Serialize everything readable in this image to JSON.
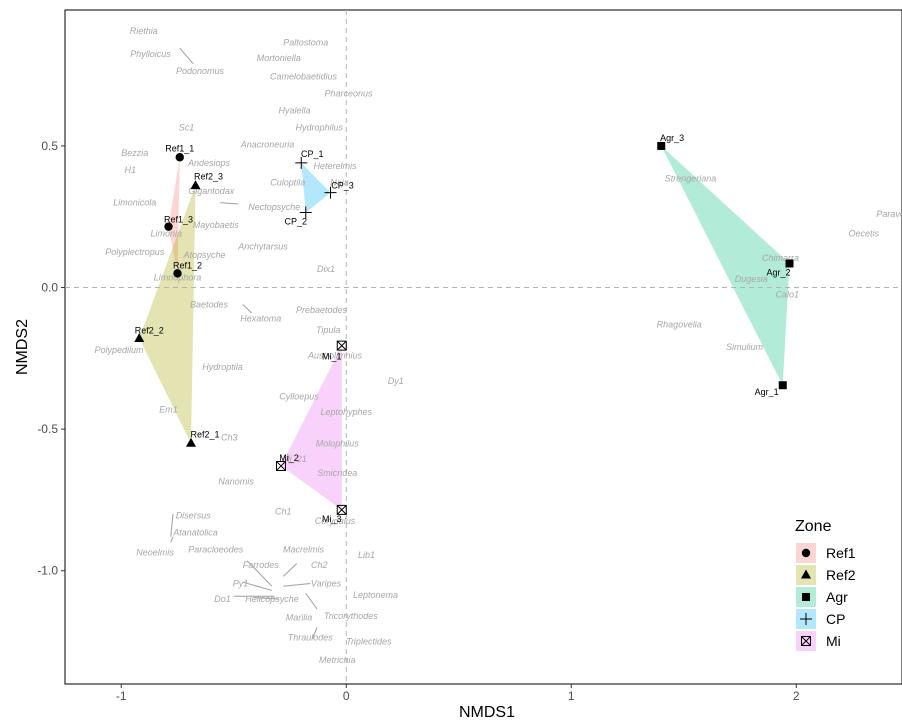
{
  "chart_data": {
    "type": "scatter",
    "xlabel": "NMDS1",
    "ylabel": "NMDS2",
    "xlim": [
      -1.25,
      2.47
    ],
    "ylim": [
      -1.4,
      0.98
    ],
    "x_ticks": [
      -1,
      0,
      1,
      2
    ],
    "x_tick_labels": [
      "-1",
      "0",
      "1",
      "2"
    ],
    "y_ticks": [
      0.5,
      0.0,
      -0.5,
      -1.0
    ],
    "y_tick_labels": [
      "0.5",
      "0.0",
      "-0.5",
      "-1.0"
    ],
    "reference_lines": {
      "x": 0,
      "y": 0
    },
    "grid": false,
    "legend": {
      "title": "Zone",
      "placement": "bottom-right",
      "entries": [
        {
          "label": "Ref1",
          "marker": "circle",
          "fill": "#f8766d"
        },
        {
          "label": "Ref2",
          "marker": "triangle",
          "fill": "#a3a500"
        },
        {
          "label": "Agr",
          "marker": "square",
          "fill": "#00bf7d"
        },
        {
          "label": "CP",
          "marker": "plus",
          "fill": "#00b0f6"
        },
        {
          "label": "Mi",
          "marker": "boxx",
          "fill": "#e76bf3"
        }
      ]
    },
    "groups": [
      {
        "name": "Ref1",
        "hull_color": "#f8766d",
        "marker": "circle",
        "points": [
          {
            "label": "Ref1_1",
            "x": -0.74,
            "y": 0.46
          },
          {
            "label": "Ref1_3",
            "x": -0.79,
            "y": 0.215
          },
          {
            "label": "Ref1_2",
            "x": -0.75,
            "y": 0.05
          }
        ]
      },
      {
        "name": "Ref2",
        "hull_color": "#a3a500",
        "marker": "triangle",
        "points": [
          {
            "label": "Ref2_3",
            "x": -0.67,
            "y": 0.36
          },
          {
            "label": "Ref2_2",
            "x": -0.92,
            "y": -0.18
          },
          {
            "label": "Ref2_1",
            "x": -0.69,
            "y": -0.55
          }
        ]
      },
      {
        "name": "Agr",
        "hull_color": "#00bf7d",
        "marker": "square",
        "points": [
          {
            "label": "Agr_3",
            "x": 1.4,
            "y": 0.5
          },
          {
            "label": "Agr_2",
            "x": 1.97,
            "y": 0.085
          },
          {
            "label": "Agr_1",
            "x": 1.94,
            "y": -0.345
          }
        ]
      },
      {
        "name": "CP",
        "hull_color": "#00b0f6",
        "marker": "plus",
        "points": [
          {
            "label": "CP_1",
            "x": -0.2,
            "y": 0.44
          },
          {
            "label": "CP_3",
            "x": -0.07,
            "y": 0.335
          },
          {
            "label": "CP_2",
            "x": -0.18,
            "y": 0.265
          }
        ]
      },
      {
        "name": "Mi",
        "hull_color": "#e76bf3",
        "marker": "boxx",
        "points": [
          {
            "label": "Mi_1",
            "x": -0.02,
            "y": -0.205
          },
          {
            "label": "Mi_2",
            "x": -0.29,
            "y": -0.63
          },
          {
            "label": "Mi_3",
            "x": -0.02,
            "y": -0.785
          }
        ]
      }
    ],
    "taxa": [
      {
        "name": "Riethia",
        "x": -0.9,
        "y": 0.905
      },
      {
        "name": "Phylloicus",
        "x": -0.87,
        "y": 0.825
      },
      {
        "name": "Podonomus",
        "x": -0.65,
        "y": 0.765
      },
      {
        "name": "Paltostoma",
        "x": -0.18,
        "y": 0.865
      },
      {
        "name": "Mortoniella",
        "x": -0.3,
        "y": 0.81
      },
      {
        "name": "Camelobaetidius",
        "x": -0.19,
        "y": 0.745
      },
      {
        "name": "Pharceonus",
        "x": 0.01,
        "y": 0.685
      },
      {
        "name": "Hyalella",
        "x": -0.23,
        "y": 0.625
      },
      {
        "name": "Hydrophilus",
        "x": -0.12,
        "y": 0.565
      },
      {
        "name": "Sc1",
        "x": -0.71,
        "y": 0.565
      },
      {
        "name": "Anacroneuria",
        "x": -0.35,
        "y": 0.505
      },
      {
        "name": "Bezzia",
        "x": -0.94,
        "y": 0.475
      },
      {
        "name": "Andesiops",
        "x": -0.61,
        "y": 0.44
      },
      {
        "name": "H1",
        "x": -0.96,
        "y": 0.415
      },
      {
        "name": "Heterelmis",
        "x": -0.05,
        "y": 0.43
      },
      {
        "name": "Culoptila",
        "x": -0.26,
        "y": 0.37
      },
      {
        "name": "Naja",
        "x": -0.03,
        "y": 0.37
      },
      {
        "name": "Gigantodax",
        "x": -0.6,
        "y": 0.34
      },
      {
        "name": "Limonicola",
        "x": -0.94,
        "y": 0.3
      },
      {
        "name": "Nectopsyche",
        "x": -0.32,
        "y": 0.285
      },
      {
        "name": "Mayobaetis",
        "x": -0.58,
        "y": 0.22
      },
      {
        "name": "Limonia",
        "x": -0.8,
        "y": 0.19
      },
      {
        "name": "Anchytarsus",
        "x": -0.37,
        "y": 0.145
      },
      {
        "name": "Polyplectropus",
        "x": -0.94,
        "y": 0.125
      },
      {
        "name": "Atopsyche",
        "x": -0.63,
        "y": 0.115
      },
      {
        "name": "Dix1",
        "x": -0.09,
        "y": 0.065
      },
      {
        "name": "Limnophora",
        "x": -0.75,
        "y": 0.035
      },
      {
        "name": "Baetodes",
        "x": -0.61,
        "y": -0.06
      },
      {
        "name": "Prebaetodes",
        "x": -0.11,
        "y": -0.08
      },
      {
        "name": "Hexatoma",
        "x": -0.38,
        "y": -0.11
      },
      {
        "name": "Tipula",
        "x": -0.08,
        "y": -0.15
      },
      {
        "name": "Polypedilum",
        "x": -1.01,
        "y": -0.22
      },
      {
        "name": "Austrolimnius",
        "x": -0.05,
        "y": -0.24
      },
      {
        "name": "Hydroptila",
        "x": -0.55,
        "y": -0.28
      },
      {
        "name": "Dy1",
        "x": 0.22,
        "y": -0.33
      },
      {
        "name": "Cylloepus",
        "x": -0.21,
        "y": -0.385
      },
      {
        "name": "Em1",
        "x": -0.79,
        "y": -0.43
      },
      {
        "name": "Leptohyphes",
        "x": 0.0,
        "y": -0.44
      },
      {
        "name": "Ch3",
        "x": -0.52,
        "y": -0.53
      },
      {
        "name": "Molophilus",
        "x": -0.04,
        "y": -0.55
      },
      {
        "name": "Mi_21",
        "x": -0.23,
        "y": -0.605
      },
      {
        "name": "Smicridea",
        "x": -0.04,
        "y": -0.655
      },
      {
        "name": "Nanomis",
        "x": -0.49,
        "y": -0.685
      },
      {
        "name": "Ch1",
        "x": -0.28,
        "y": -0.79
      },
      {
        "name": "Corydalus",
        "x": -0.05,
        "y": -0.825
      },
      {
        "name": "Disersus",
        "x": -0.68,
        "y": -0.805
      },
      {
        "name": "Atanatolica",
        "x": -0.67,
        "y": -0.865
      },
      {
        "name": "Macrelmis",
        "x": -0.19,
        "y": -0.925
      },
      {
        "name": "Neoelmis",
        "x": -0.85,
        "y": -0.935
      },
      {
        "name": "Paracloeodes",
        "x": -0.58,
        "y": -0.925
      },
      {
        "name": "Lib1",
        "x": 0.09,
        "y": -0.945
      },
      {
        "name": "Farrodes",
        "x": -0.38,
        "y": -0.98
      },
      {
        "name": "Ch2",
        "x": -0.12,
        "y": -0.98
      },
      {
        "name": "Varipes",
        "x": -0.09,
        "y": -1.045
      },
      {
        "name": "Py1",
        "x": -0.47,
        "y": -1.045
      },
      {
        "name": "Leptonema",
        "x": 0.13,
        "y": -1.085
      },
      {
        "name": "Do1",
        "x": -0.55,
        "y": -1.1
      },
      {
        "name": "Helicopsyche",
        "x": -0.33,
        "y": -1.1
      },
      {
        "name": "Marilia",
        "x": -0.21,
        "y": -1.165
      },
      {
        "name": "Tricorythodes",
        "x": 0.02,
        "y": -1.16
      },
      {
        "name": "Thraulodes",
        "x": -0.16,
        "y": -1.235
      },
      {
        "name": "Triplectides",
        "x": 0.1,
        "y": -1.25
      },
      {
        "name": "Metrichia",
        "x": -0.04,
        "y": -1.315
      },
      {
        "name": "Strengeriana",
        "x": 1.53,
        "y": 0.385
      },
      {
        "name": "Paravelia",
        "x": 2.44,
        "y": 0.26
      },
      {
        "name": "Oecetis",
        "x": 2.3,
        "y": 0.19
      },
      {
        "name": "Chimarra",
        "x": 1.93,
        "y": 0.105
      },
      {
        "name": "Dugesia",
        "x": 1.8,
        "y": 0.03
      },
      {
        "name": "Calo1",
        "x": 1.96,
        "y": -0.025
      },
      {
        "name": "Rhagovelia",
        "x": 1.48,
        "y": -0.13
      },
      {
        "name": "Simulium",
        "x": 1.77,
        "y": -0.21
      }
    ],
    "taxon_leaders": [
      [
        [
          -0.74,
          0.845
        ],
        [
          -0.68,
          0.79
        ]
      ],
      [
        [
          -0.56,
          0.3
        ],
        [
          -0.48,
          0.295
        ]
      ],
      [
        [
          -0.46,
          -0.06
        ],
        [
          -0.42,
          -0.09
        ]
      ],
      [
        [
          -0.78,
          -0.88
        ],
        [
          -0.77,
          -0.8
        ]
      ],
      [
        [
          -0.77,
          -0.88
        ],
        [
          -0.78,
          -0.9
        ]
      ],
      [
        [
          -0.44,
          -0.965
        ],
        [
          -0.33,
          -1.055
        ]
      ],
      [
        [
          -0.46,
          -1.04
        ],
        [
          -0.33,
          -1.07
        ]
      ],
      [
        [
          -0.5,
          -1.09
        ],
        [
          -0.32,
          -1.09
        ]
      ],
      [
        [
          -0.41,
          -1.095
        ],
        [
          -0.3,
          -1.1
        ]
      ],
      [
        [
          -0.22,
          -0.975
        ],
        [
          -0.28,
          -1.02
        ]
      ],
      [
        [
          -0.28,
          -1.055
        ],
        [
          -0.16,
          -1.045
        ]
      ],
      [
        [
          -0.18,
          -1.08
        ],
        [
          -0.13,
          -1.135
        ]
      ],
      [
        [
          -0.13,
          -1.2
        ],
        [
          -0.15,
          -1.24
        ]
      ]
    ]
  }
}
